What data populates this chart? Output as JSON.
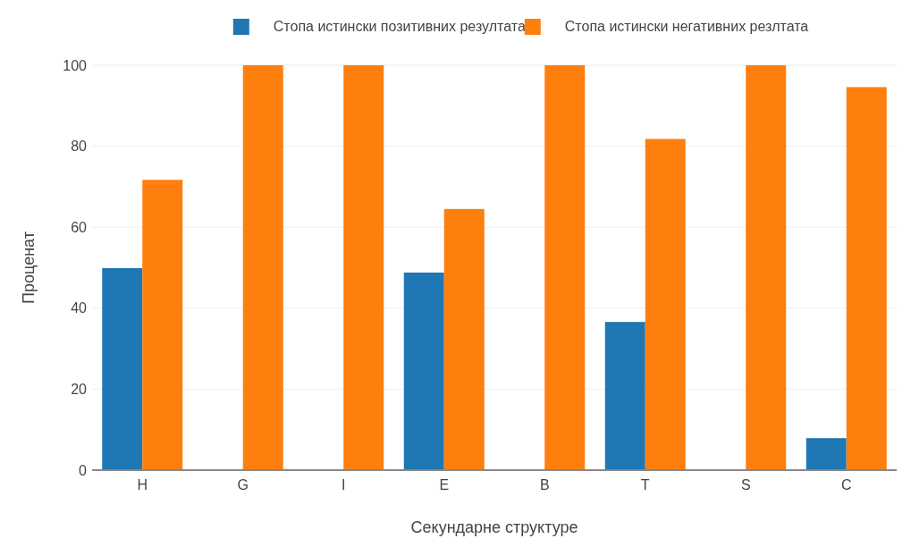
{
  "chart_data": {
    "type": "bar",
    "xlabel": "Секундарне структуре",
    "ylabel": "Проценат",
    "categories": [
      "H",
      "G",
      "I",
      "E",
      "B",
      "T",
      "S",
      "C"
    ],
    "series": [
      {
        "name": "Стопа истински позитивних резултата",
        "color": "#1f77b4",
        "values": [
          49.9,
          0,
          0,
          48.8,
          0,
          36.6,
          0,
          7.9
        ]
      },
      {
        "name": "Стопа истински негативних резлтата",
        "color": "#ff7f0e",
        "values": [
          71.7,
          100,
          100,
          64.5,
          100,
          81.8,
          100,
          94.6
        ]
      }
    ],
    "ylim": [
      0,
      100
    ],
    "yticks": [
      0,
      20,
      40,
      60,
      80,
      100
    ],
    "grid": "y",
    "legend": "top"
  }
}
